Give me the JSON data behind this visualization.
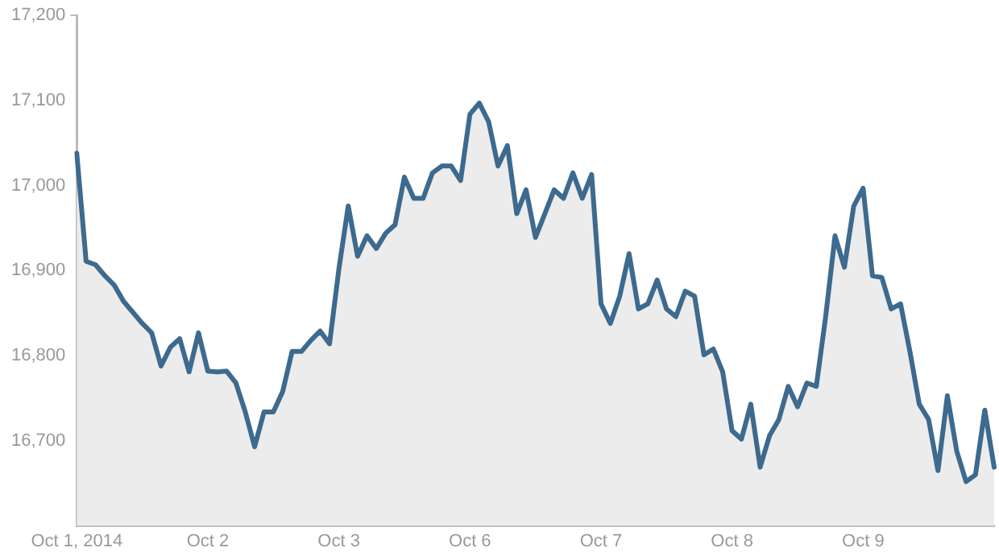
{
  "chart_data": {
    "type": "area",
    "categories": [
      "Oct 1, 2014",
      null,
      null,
      null,
      null,
      null,
      null,
      null,
      null,
      null,
      null,
      null,
      null,
      null,
      "Oct 2",
      null,
      null,
      null,
      null,
      null,
      null,
      null,
      null,
      null,
      null,
      null,
      null,
      null,
      "Oct 3",
      null,
      null,
      null,
      null,
      null,
      null,
      null,
      null,
      null,
      null,
      null,
      null,
      null,
      "Oct 6",
      null,
      null,
      null,
      null,
      null,
      null,
      null,
      null,
      null,
      null,
      null,
      null,
      null,
      "Oct 7",
      null,
      null,
      null,
      null,
      null,
      null,
      null,
      null,
      null,
      null,
      null,
      null,
      null,
      "Oct 8",
      null,
      null,
      null,
      null,
      null,
      null,
      null,
      null,
      null,
      null,
      null,
      null,
      null,
      "Oct 9",
      null,
      null,
      null,
      null,
      null,
      null,
      null,
      null,
      null,
      null,
      null,
      null,
      null,
      null
    ],
    "series": [
      {
        "color": "#3d6a8e",
        "values": [
          17038,
          16911,
          16907,
          16894,
          16883,
          16864,
          16851,
          16838,
          16827,
          16788,
          16810,
          16820,
          16781,
          16827,
          16782,
          16781,
          16782,
          16768,
          16734,
          16693,
          16734,
          16734,
          16758,
          16805,
          16805,
          16818,
          16829,
          16814,
          16902,
          16976,
          16917,
          16941,
          16926,
          16944,
          16954,
          17010,
          16985,
          16985,
          17015,
          17023,
          17023,
          17006,
          17084,
          17097,
          17075,
          17023,
          17047,
          16967,
          16995,
          16939,
          16967,
          16995,
          16985,
          17015,
          16985,
          17013,
          16861,
          16838,
          16870,
          16920,
          16855,
          16861,
          16889,
          16855,
          16846,
          16876,
          16870,
          16801,
          16808,
          16781,
          16712,
          16702,
          16743,
          16669,
          16706,
          16725,
          16764,
          16740,
          16768,
          16764,
          16846,
          16941,
          16904,
          16976,
          16997,
          16894,
          16892,
          16855,
          16861,
          16805,
          16743,
          16725,
          16665,
          16753,
          16688,
          16652,
          16660,
          16736,
          16669
        ]
      }
    ],
    "ylim": [
      16600,
      17200
    ],
    "yticks": [
      {
        "value": 16600,
        "label": null
      },
      {
        "value": 16700,
        "label": "16,700"
      },
      {
        "value": 16800,
        "label": "16,800"
      },
      {
        "value": 16900,
        "label": "16,900"
      },
      {
        "value": 17000,
        "label": "17,000"
      },
      {
        "value": 17100,
        "label": "17,100"
      },
      {
        "value": 17200,
        "label": "17,200"
      }
    ],
    "grid": false,
    "legend": false,
    "marker": "none",
    "line_style": "solid"
  }
}
